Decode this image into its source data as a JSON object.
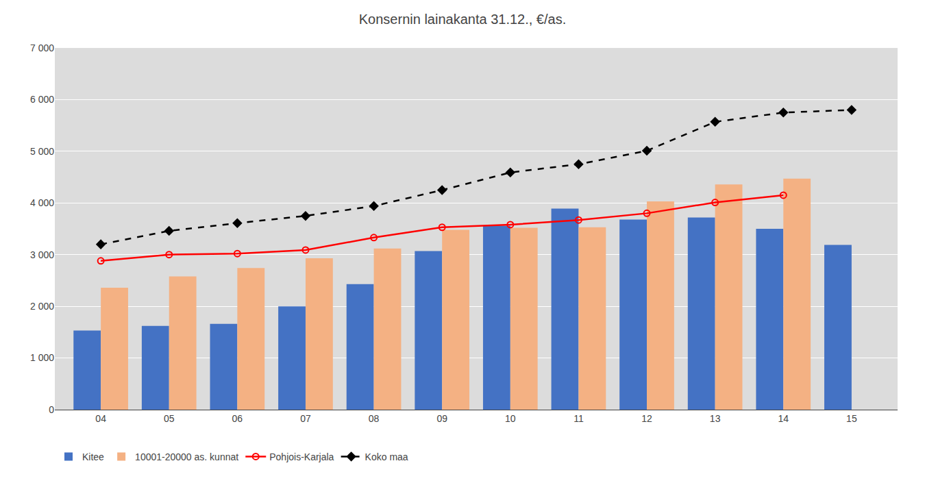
{
  "chart_data": {
    "type": "bar",
    "title": "Konsernin lainakanta 31.12., €/as.",
    "categories": [
      "04",
      "05",
      "06",
      "07",
      "08",
      "09",
      "10",
      "11",
      "12",
      "13",
      "14",
      "15"
    ],
    "series": [
      {
        "name": "Kitee",
        "type": "bar",
        "color": "#4472C4",
        "values": [
          1530,
          1620,
          1660,
          2000,
          2430,
          3070,
          3560,
          3890,
          3680,
          3720,
          3500,
          3190
        ]
      },
      {
        "name": "10001-20000 as. kunnat",
        "type": "bar",
        "color": "#F4B183",
        "values": [
          2360,
          2580,
          2740,
          2930,
          3120,
          3480,
          3520,
          3530,
          4030,
          4360,
          4470,
          null
        ]
      },
      {
        "name": "Pohjois-Karjala",
        "type": "line",
        "color": "#FF0000",
        "marker": "circle-open",
        "line_style": "solid",
        "values": [
          2880,
          3000,
          3020,
          3090,
          3330,
          3530,
          3580,
          3670,
          3800,
          4010,
          4150,
          null
        ]
      },
      {
        "name": "Koko maa",
        "type": "line",
        "color": "#000000",
        "marker": "diamond",
        "line_style": "dashed",
        "values": [
          3200,
          3460,
          3610,
          3750,
          3940,
          4250,
          4590,
          4750,
          5010,
          5570,
          5750,
          5800
        ]
      }
    ],
    "ylim": [
      0,
      7000
    ],
    "yticks": [
      0,
      {
        "value": 1000,
        "label": "1 000"
      },
      {
        "value": 2000,
        "label": "2 000"
      },
      {
        "value": 3000,
        "label": "3 000"
      },
      {
        "value": 4000,
        "label": "4 000"
      },
      {
        "value": 5000,
        "label": "5 000"
      },
      {
        "value": 6000,
        "label": "6 000"
      },
      {
        "value": 7000,
        "label": "7 000"
      }
    ],
    "grid": true,
    "legend": "bottom"
  }
}
